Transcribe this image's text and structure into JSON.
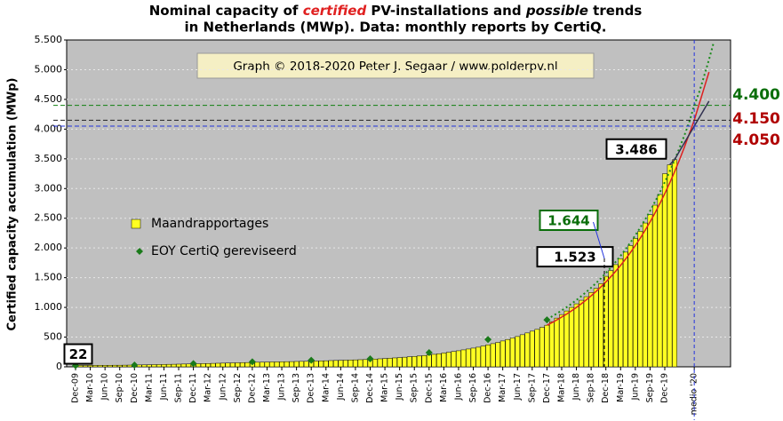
{
  "chart_data": {
    "type": "bar",
    "title_line1": [
      "Nominal capacity of",
      "certified",
      "PV-installations and",
      "possible",
      "trends"
    ],
    "title_line2": "in Netherlands (MWp). Data: monthly reports by CertiQ.",
    "y_label": "Certified capacity accumulation (MWp)",
    "watermark": "Graph © 2018-2020 Peter J. Segaar / www.polderpv.nl",
    "ylim": [
      0,
      5500
    ],
    "yticks": [
      0,
      500,
      {
        "value": 1000,
        "label": "1.000"
      },
      {
        "value": 1500,
        "label": "1.500"
      },
      {
        "value": 2000,
        "label": "2.000"
      },
      {
        "value": 2500,
        "label": "2.500"
      },
      {
        "value": 3000,
        "label": "3.000"
      },
      {
        "value": 3500,
        "label": "3.500"
      },
      {
        "value": 4000,
        "label": "4.000"
      },
      {
        "value": 4500,
        "label": "4.500"
      },
      {
        "value": 5000,
        "label": "5.000"
      },
      {
        "value": 5500,
        "label": "5.500"
      }
    ],
    "grid": true,
    "categories": [
      "Dec-09",
      null,
      null,
      "Mar-10",
      null,
      null,
      "Jun-10",
      null,
      null,
      "Sep-10",
      null,
      null,
      "Dec-10",
      null,
      null,
      "Mar-11",
      null,
      null,
      "Jun-11",
      null,
      null,
      "Sep-11",
      null,
      null,
      "Dec-11",
      null,
      null,
      "Mar-12",
      null,
      null,
      "Jun-12",
      null,
      null,
      "Sep-12",
      null,
      null,
      "Dec-12",
      null,
      null,
      "Mar-13",
      null,
      null,
      "Jun-13",
      null,
      null,
      "Sep-13",
      null,
      null,
      "Dec-13",
      null,
      null,
      "Mar-14",
      null,
      null,
      "Jun-14",
      null,
      null,
      "Sep-14",
      null,
      null,
      "Dec-14",
      null,
      null,
      "Mar-15",
      null,
      null,
      "Jun-15",
      null,
      null,
      "Sep-15",
      null,
      null,
      "Dec-15",
      null,
      null,
      "Mar-16",
      null,
      null,
      "Jun-16",
      null,
      null,
      "Sep-16",
      null,
      null,
      "Dec-16",
      null,
      null,
      "Mar-17",
      null,
      null,
      "Jun-17",
      null,
      null,
      "Sep-17",
      null,
      null,
      "Dec-17",
      null,
      null,
      "Mar-18",
      null,
      null,
      "Jun-18",
      null,
      null,
      "Sep-18",
      null,
      null,
      "Dec-18",
      null,
      null,
      "Mar-19",
      null,
      null,
      "Jun-19",
      null,
      null,
      "Sep-19",
      null,
      null,
      "Dec-19",
      null,
      null,
      null,
      null,
      null,
      "medio '20",
      null,
      null,
      null,
      null,
      null,
      null
    ],
    "series": [
      {
        "name": "Maandrapportages",
        "type": "bar",
        "color": "#ffff22",
        "values": [
          22,
          23,
          23,
          24,
          24,
          25,
          25,
          26,
          27,
          27,
          28,
          29,
          30,
          32,
          33,
          35,
          37,
          38,
          40,
          42,
          43,
          45,
          47,
          48,
          50,
          52,
          54,
          56,
          58,
          60,
          62,
          64,
          66,
          68,
          70,
          72,
          75,
          77,
          78,
          80,
          82,
          83,
          85,
          87,
          88,
          90,
          92,
          93,
          95,
          97,
          100,
          102,
          105,
          107,
          110,
          112,
          115,
          117,
          120,
          122,
          125,
          130,
          135,
          140,
          145,
          150,
          155,
          162,
          168,
          175,
          182,
          190,
          200,
          210,
          220,
          232,
          245,
          258,
          270,
          285,
          300,
          315,
          330,
          350,
          370,
          390,
          410,
          435,
          460,
          485,
          510,
          540,
          570,
          600,
          630,
          665,
          700,
          760,
          820,
          880,
          940,
          1000,
          1060,
          1120,
          1180,
          1250,
          1320,
          1400,
          1523,
          1620,
          1720,
          1820,
          1930,
          2040,
          2160,
          2280,
          2420,
          2560,
          2720,
          2900,
          3250,
          3400,
          3486,
          null,
          null,
          null,
          null,
          null,
          null,
          null,
          null,
          null,
          null
        ]
      },
      {
        "name": "EOY CertiQ gereviseerd",
        "type": "scatter",
        "color": "#1a7a1a",
        "values": [
          20,
          null,
          null,
          null,
          null,
          null,
          null,
          null,
          null,
          null,
          null,
          null,
          30,
          null,
          null,
          null,
          null,
          null,
          null,
          null,
          null,
          null,
          null,
          null,
          55,
          null,
          null,
          null,
          null,
          null,
          null,
          null,
          null,
          null,
          null,
          null,
          85,
          null,
          null,
          null,
          null,
          null,
          null,
          null,
          null,
          null,
          null,
          null,
          110,
          null,
          null,
          null,
          null,
          null,
          null,
          null,
          null,
          null,
          null,
          null,
          135,
          null,
          null,
          null,
          null,
          null,
          null,
          null,
          null,
          null,
          null,
          null,
          240,
          null,
          null,
          null,
          null,
          null,
          null,
          null,
          null,
          null,
          null,
          null,
          460,
          null,
          null,
          null,
          null,
          null,
          null,
          null,
          null,
          null,
          null,
          null,
          790,
          null,
          null,
          null,
          null,
          null,
          null,
          null,
          null,
          null,
          null,
          null,
          1800,
          null,
          null,
          null,
          null,
          null,
          null,
          null,
          null,
          null,
          null,
          null,
          null,
          null,
          null,
          null,
          null,
          null,
          null,
          null,
          null,
          null,
          null,
          null,
          null
        ]
      },
      {
        "type": "line",
        "color": "#1a8a1a",
        "style": "dotted",
        "values": [
          null,
          null,
          null,
          null,
          null,
          null,
          null,
          null,
          null,
          null,
          null,
          null,
          null,
          null,
          null,
          null,
          null,
          null,
          null,
          null,
          null,
          null,
          null,
          null,
          null,
          null,
          null,
          null,
          null,
          null,
          null,
          null,
          null,
          null,
          null,
          null,
          null,
          null,
          null,
          null,
          null,
          null,
          null,
          null,
          null,
          null,
          null,
          null,
          null,
          null,
          null,
          null,
          null,
          null,
          null,
          null,
          null,
          null,
          null,
          null,
          null,
          null,
          null,
          null,
          null,
          null,
          null,
          null,
          null,
          null,
          null,
          null,
          null,
          null,
          null,
          null,
          null,
          null,
          null,
          null,
          null,
          null,
          null,
          null,
          null,
          null,
          null,
          null,
          null,
          null,
          null,
          null,
          null,
          null,
          null,
          null,
          800,
          847,
          896,
          948,
          1003,
          1061,
          1123,
          1189,
          1258,
          1331,
          1408,
          1490,
          1577,
          1669,
          1766,
          1869,
          1977,
          2092,
          2214,
          2343,
          2479,
          2623,
          2776,
          2937,
          3108,
          3289,
          3480,
          3683,
          3897,
          4123,
          4400,
          4620,
          4890,
          5170,
          5470,
          null,
          null
        ]
      },
      {
        "type": "line",
        "color": "#dd2020",
        "style": "solid",
        "values": [
          null,
          null,
          null,
          null,
          null,
          null,
          null,
          null,
          null,
          null,
          null,
          null,
          null,
          null,
          null,
          null,
          null,
          null,
          null,
          null,
          null,
          null,
          null,
          null,
          null,
          null,
          null,
          null,
          null,
          null,
          null,
          null,
          null,
          null,
          null,
          null,
          null,
          null,
          null,
          null,
          null,
          null,
          null,
          null,
          null,
          null,
          null,
          null,
          null,
          null,
          null,
          null,
          null,
          null,
          null,
          null,
          null,
          null,
          null,
          null,
          null,
          null,
          null,
          null,
          null,
          null,
          null,
          null,
          null,
          null,
          null,
          null,
          null,
          null,
          null,
          null,
          null,
          null,
          null,
          null,
          null,
          null,
          null,
          null,
          null,
          null,
          null,
          null,
          null,
          null,
          null,
          null,
          null,
          null,
          null,
          null,
          700,
          743,
          788,
          837,
          888,
          942,
          1000,
          1061,
          1126,
          1195,
          1268,
          1346,
          1428,
          1516,
          1609,
          1707,
          1812,
          1923,
          2040,
          2165,
          2298,
          2439,
          2588,
          2747,
          2915,
          3094,
          3283,
          3484,
          3698,
          3924,
          4150,
          4420,
          4690,
          4960,
          null,
          null,
          null
        ]
      },
      {
        "type": "line",
        "color": "#303050",
        "style": "solid",
        "values": [
          null,
          null,
          null,
          null,
          null,
          null,
          null,
          null,
          null,
          null,
          null,
          null,
          null,
          null,
          null,
          null,
          null,
          null,
          null,
          null,
          null,
          null,
          null,
          null,
          null,
          null,
          null,
          null,
          null,
          null,
          null,
          null,
          null,
          null,
          null,
          null,
          null,
          null,
          null,
          null,
          null,
          null,
          null,
          null,
          null,
          null,
          null,
          null,
          null,
          null,
          null,
          null,
          null,
          null,
          null,
          null,
          null,
          null,
          null,
          null,
          null,
          null,
          null,
          null,
          null,
          null,
          null,
          null,
          null,
          null,
          null,
          null,
          null,
          null,
          null,
          null,
          null,
          null,
          null,
          null,
          null,
          null,
          null,
          null,
          null,
          null,
          null,
          null,
          null,
          null,
          null,
          null,
          null,
          null,
          null,
          null,
          null,
          null,
          null,
          null,
          null,
          null,
          null,
          null,
          null,
          null,
          null,
          null,
          null,
          null,
          null,
          null,
          null,
          null,
          null,
          null,
          null,
          null,
          null,
          null,
          null,
          3400,
          3486,
          3630,
          3770,
          3910,
          4050,
          4190,
          4330,
          4470,
          null,
          null,
          null
        ]
      }
    ],
    "annotations": [
      {
        "value": 22,
        "label": "22",
        "color": "#000000"
      },
      {
        "value": 1523,
        "label": "1.523",
        "color": "#000000"
      },
      {
        "value": 1644,
        "label": "1.644",
        "color": "#0a6e0a"
      },
      {
        "value": 3486,
        "label": "3.486",
        "color": "#000000"
      },
      {
        "value": 4400,
        "label": "4.400",
        "color": "#0a6e0a",
        "line_color": "#108010"
      },
      {
        "value": 4150,
        "label": "4.150",
        "color": "#b00000",
        "line_color": "#222222"
      },
      {
        "value": 4050,
        "label": "4.050",
        "color": "#b00000",
        "line_color": "#2233dd"
      }
    ]
  }
}
